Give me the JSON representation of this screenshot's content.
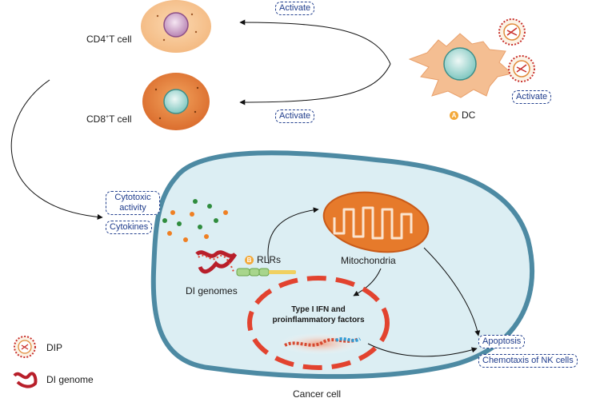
{
  "cells": {
    "cd4": {
      "prefix": "CD4",
      "sup": "+",
      "suffix": "T cell"
    },
    "cd8": {
      "prefix": "CD8",
      "sup": "+",
      "suffix": "T cell"
    },
    "dc": {
      "badge": "A",
      "label": "DC"
    },
    "cancer": "Cancer cell"
  },
  "tags": {
    "activate_cd4": "Activate",
    "activate_cd8": "Activate",
    "activate_dc": "Activate",
    "cytotoxic": "Cytotoxic activity",
    "cytokines": "Cytokines",
    "apoptosis": "Apoptosis",
    "chemotaxis": "Chemotaxis of NK cells"
  },
  "labels": {
    "rlrs_badge": "B",
    "rlrs": "RLRs",
    "mitochondria": "Mitochondria",
    "di_genomes": "DI genomes",
    "ifn_line1": "Type I IFN and",
    "ifn_line2": "proinflammatory factors"
  },
  "legend": {
    "dip": "DIP",
    "di_genome": "DI genome"
  },
  "colors": {
    "cell_fill": "#dceef3",
    "cell_border": "#4d8aa3",
    "mito_fill": "#e67a2b",
    "nucleus_dash": "#e2432f",
    "tag_border": "#23408e"
  }
}
